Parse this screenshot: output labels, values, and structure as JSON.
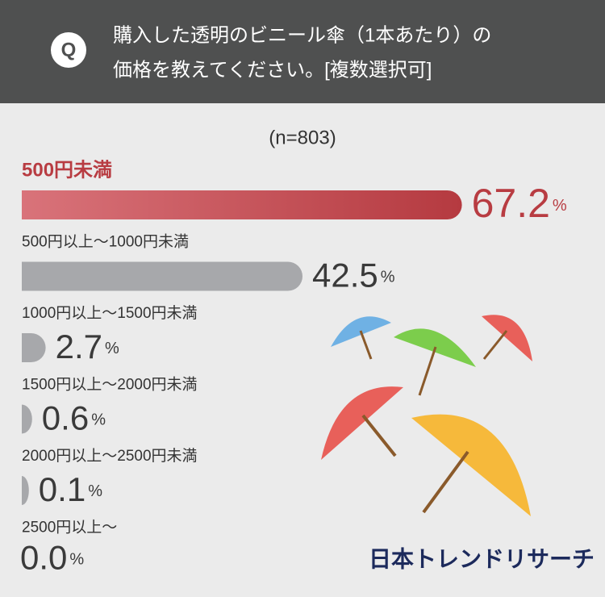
{
  "chart_data": {
    "type": "bar",
    "orientation": "horizontal",
    "question_mark": "Q",
    "title": [
      "購入した透明のビニール傘（1本あたり）の",
      "価格を教えてください。[複数選択可]"
    ],
    "subtitle": "(n=803)",
    "categories": [
      "500円未満",
      "500円以上～1000円未満",
      "1000円以上～1500円未満",
      "1500円以上～2000円未満",
      "2000円以上～2500円未満",
      "2500円以上～"
    ],
    "values": [
      67.2,
      42.5,
      2.7,
      0.6,
      0.1,
      0
    ],
    "value_labels": [
      "67.2%",
      "42.5%",
      "2.7%",
      "0.6%",
      "0.1%",
      "0.0%"
    ],
    "highlight_color": "#b83c42",
    "color": "#a7a8ab",
    "source": "日本トレンドリサーチ"
  }
}
